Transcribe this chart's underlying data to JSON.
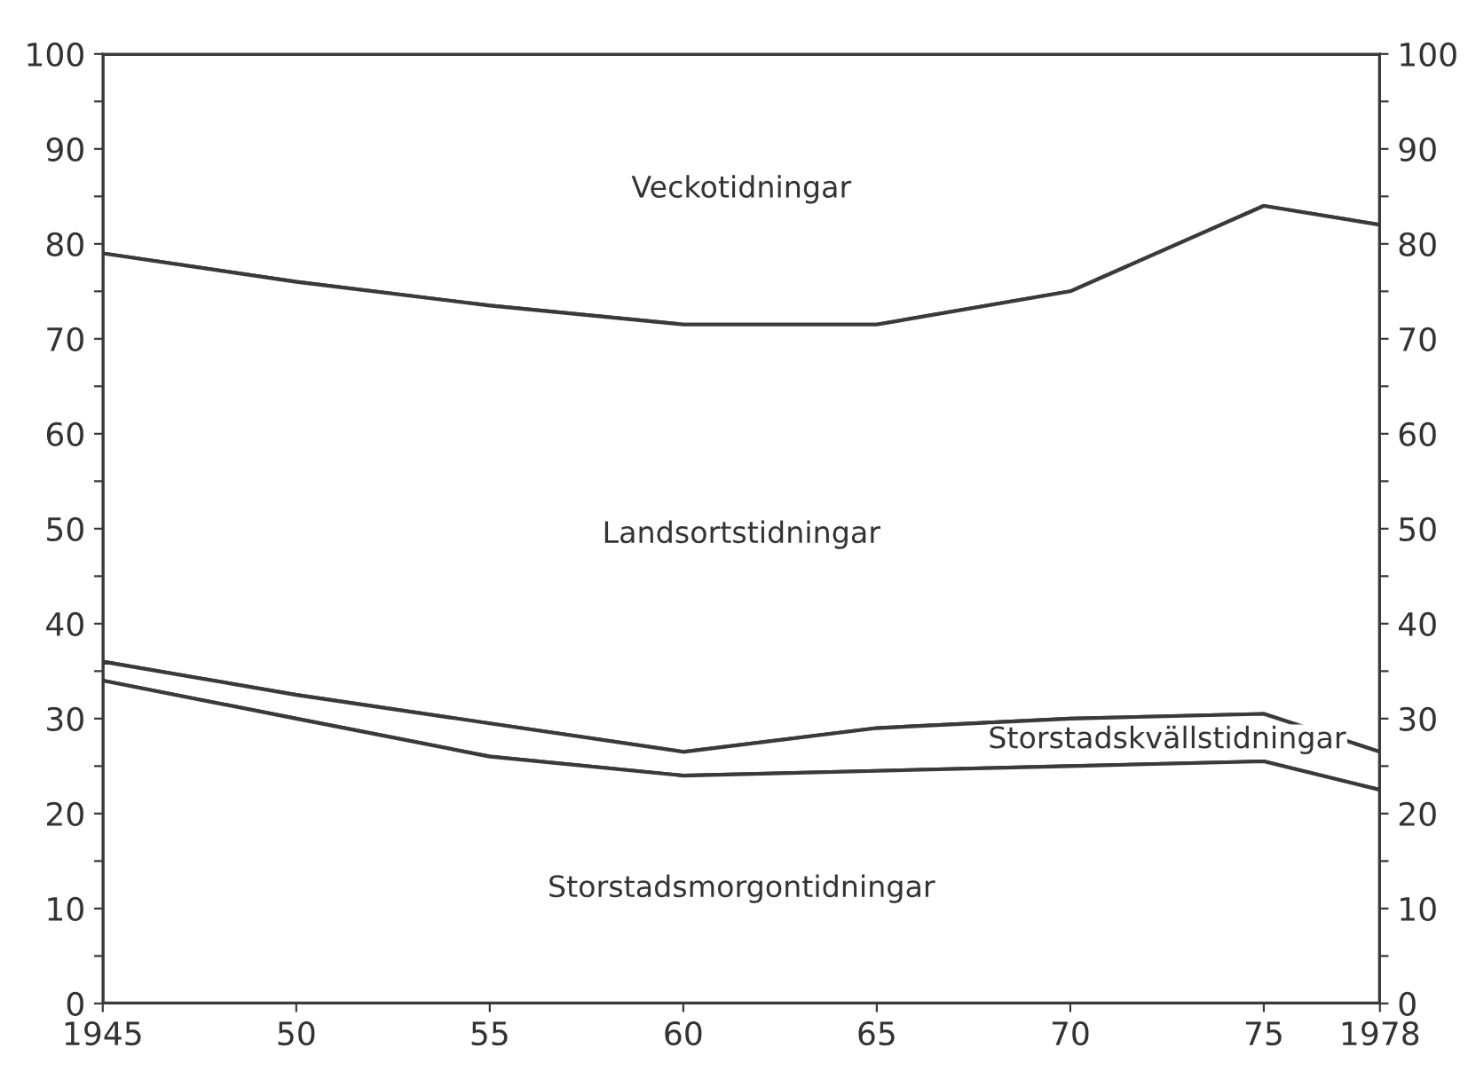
{
  "chart_data": {
    "type": "area",
    "stacked": true,
    "x": [
      1945,
      1950,
      1955,
      1960,
      1965,
      1970,
      1975,
      1978
    ],
    "series": [
      {
        "name": "Storstadsmorgontidningar",
        "color": "#3a3a3a",
        "values": [
          34,
          30,
          26,
          24,
          24.5,
          25,
          25.5,
          22.5
        ]
      },
      {
        "name": "Storstadskvällstidningar",
        "color": "#3a3a3a",
        "values": [
          2,
          2.5,
          3.5,
          2.5,
          4.5,
          5,
          5,
          4
        ]
      },
      {
        "name": "Landsortstidningar",
        "color": "#3a3a3a",
        "values": [
          43,
          43.5,
          44,
          45,
          42.5,
          45,
          53.5,
          55.5
        ]
      },
      {
        "name": "Veckotidningar",
        "color": "#3a3a3a",
        "values": [
          21,
          24,
          26.5,
          28.5,
          28.5,
          25,
          16,
          18
        ]
      }
    ],
    "xlim": [
      1945,
      1978
    ],
    "xticks": [
      1945,
      {
        "value": 1950,
        "label": "50"
      },
      {
        "value": 1955,
        "label": "55"
      },
      {
        "value": 1960,
        "label": "60"
      },
      {
        "value": 1965,
        "label": "65"
      },
      {
        "value": 1970,
        "label": "70"
      },
      {
        "value": 1975,
        "label": "75"
      },
      1978
    ],
    "ylim": [
      0,
      100
    ],
    "yticks": [
      0,
      {
        "value": 5,
        "label": null
      },
      10,
      {
        "value": 15,
        "label": null
      },
      20,
      {
        "value": 25,
        "label": null
      },
      30,
      {
        "value": 35,
        "label": null
      },
      40,
      {
        "value": 45,
        "label": null
      },
      50,
      {
        "value": 55,
        "label": null
      },
      60,
      {
        "value": 65,
        "label": null
      },
      70,
      {
        "value": 75,
        "label": null
      },
      80,
      {
        "value": 85,
        "label": null
      },
      90,
      {
        "value": 95,
        "label": null
      },
      100
    ],
    "y2lim": [
      0,
      100
    ],
    "y2ticks": [
      0,
      {
        "value": 5,
        "label": null
      },
      10,
      {
        "value": 15,
        "label": null
      },
      20,
      {
        "value": 25,
        "label": null
      },
      30,
      {
        "value": 35,
        "label": null
      },
      40,
      {
        "value": 45,
        "label": null
      },
      50,
      {
        "value": 55,
        "label": null
      },
      60,
      {
        "value": 65,
        "label": null
      },
      70,
      {
        "value": 75,
        "label": null
      },
      80,
      {
        "value": 85,
        "label": null
      },
      90,
      {
        "value": 95,
        "label": null
      },
      100
    ],
    "legend": false
  }
}
